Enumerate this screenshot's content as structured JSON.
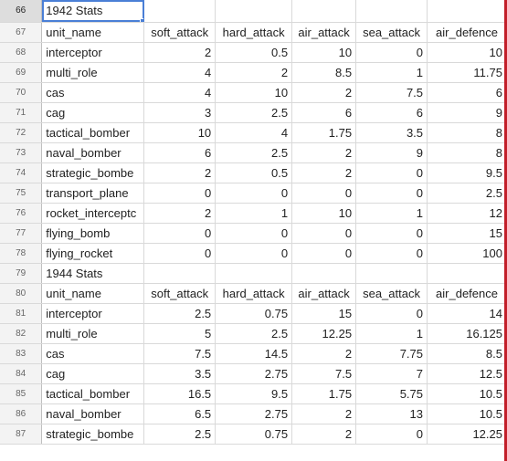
{
  "rows": [
    {
      "row": "66",
      "cells": [
        "1942 Stats",
        "",
        "",
        "",
        "",
        ""
      ],
      "type": "title",
      "selected": true
    },
    {
      "row": "67",
      "cells": [
        "unit_name",
        "soft_attack",
        "hard_attack",
        "air_attack",
        "sea_attack",
        "air_defence"
      ],
      "type": "header"
    },
    {
      "row": "68",
      "cells": [
        "interceptor",
        "2",
        "0.5",
        "10",
        "0",
        "10"
      ],
      "type": "data"
    },
    {
      "row": "69",
      "cells": [
        "multi_role",
        "4",
        "2",
        "8.5",
        "1",
        "11.75"
      ],
      "type": "data"
    },
    {
      "row": "70",
      "cells": [
        "cas",
        "4",
        "10",
        "2",
        "7.5",
        "6"
      ],
      "type": "data"
    },
    {
      "row": "71",
      "cells": [
        "cag",
        "3",
        "2.5",
        "6",
        "6",
        "9"
      ],
      "type": "data"
    },
    {
      "row": "72",
      "cells": [
        "tactical_bomber",
        "10",
        "4",
        "1.75",
        "3.5",
        "8"
      ],
      "type": "data"
    },
    {
      "row": "73",
      "cells": [
        "naval_bomber",
        "6",
        "2.5",
        "2",
        "9",
        "8"
      ],
      "type": "data"
    },
    {
      "row": "74",
      "cells": [
        "strategic_bombe",
        "2",
        "0.5",
        "2",
        "0",
        "9.5"
      ],
      "type": "data"
    },
    {
      "row": "75",
      "cells": [
        "transport_plane",
        "0",
        "0",
        "0",
        "0",
        "2.5"
      ],
      "type": "data"
    },
    {
      "row": "76",
      "cells": [
        "rocket_interceptc",
        "2",
        "1",
        "10",
        "1",
        "12"
      ],
      "type": "data"
    },
    {
      "row": "77",
      "cells": [
        "flying_bomb",
        "0",
        "0",
        "0",
        "0",
        "15"
      ],
      "type": "data"
    },
    {
      "row": "78",
      "cells": [
        "flying_rocket",
        "0",
        "0",
        "0",
        "0",
        "100"
      ],
      "type": "data"
    },
    {
      "row": "79",
      "cells": [
        "1944 Stats",
        "",
        "",
        "",
        "",
        ""
      ],
      "type": "title"
    },
    {
      "row": "80",
      "cells": [
        "unit_name",
        "soft_attack",
        "hard_attack",
        "air_attack",
        "sea_attack",
        "air_defence"
      ],
      "type": "header"
    },
    {
      "row": "81",
      "cells": [
        "interceptor",
        "2.5",
        "0.75",
        "15",
        "0",
        "14"
      ],
      "type": "data"
    },
    {
      "row": "82",
      "cells": [
        "multi_role",
        "5",
        "2.5",
        "12.25",
        "1",
        "16.125"
      ],
      "type": "data"
    },
    {
      "row": "83",
      "cells": [
        "cas",
        "7.5",
        "14.5",
        "2",
        "7.75",
        "8.5"
      ],
      "type": "data"
    },
    {
      "row": "84",
      "cells": [
        "cag",
        "3.5",
        "2.75",
        "7.5",
        "7",
        "12.5"
      ],
      "type": "data"
    },
    {
      "row": "85",
      "cells": [
        "tactical_bomber",
        "16.5",
        "9.5",
        "1.75",
        "5.75",
        "10.5"
      ],
      "type": "data"
    },
    {
      "row": "86",
      "cells": [
        "naval_bomber",
        "6.5",
        "2.75",
        "2",
        "13",
        "10.5"
      ],
      "type": "data"
    },
    {
      "row": "87",
      "cells": [
        "strategic_bombe",
        "2.5",
        "0.75",
        "2",
        "0",
        "12.25"
      ],
      "type": "data"
    }
  ],
  "colors": {
    "selection": "#4a7fd6",
    "grid": "#d9d9d9",
    "row_header_bg": "#f3f3f3",
    "scroll_accent": "#c21f2a"
  }
}
